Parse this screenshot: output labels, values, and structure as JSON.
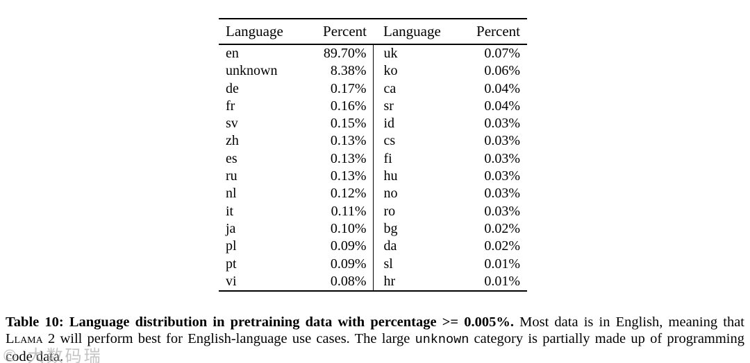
{
  "page": {
    "background": "#ffffff",
    "text_color": "#000000"
  },
  "table": {
    "headers": [
      "Language",
      "Percent",
      "Language",
      "Percent"
    ],
    "rows": [
      {
        "lang1": "en",
        "pct1": "89.70%",
        "lang2": "uk",
        "pct2": "0.07%"
      },
      {
        "lang1": "unknown",
        "pct1": "8.38%",
        "lang2": "ko",
        "pct2": "0.06%"
      },
      {
        "lang1": "de",
        "pct1": "0.17%",
        "lang2": "ca",
        "pct2": "0.04%"
      },
      {
        "lang1": "fr",
        "pct1": "0.16%",
        "lang2": "sr",
        "pct2": "0.04%"
      },
      {
        "lang1": "sv",
        "pct1": "0.15%",
        "lang2": "id",
        "pct2": "0.03%"
      },
      {
        "lang1": "zh",
        "pct1": "0.13%",
        "lang2": "cs",
        "pct2": "0.03%"
      },
      {
        "lang1": "es",
        "pct1": "0.13%",
        "lang2": "fi",
        "pct2": "0.03%"
      },
      {
        "lang1": "ru",
        "pct1": "0.13%",
        "lang2": "hu",
        "pct2": "0.03%"
      },
      {
        "lang1": "nl",
        "pct1": "0.12%",
        "lang2": "no",
        "pct2": "0.03%"
      },
      {
        "lang1": "it",
        "pct1": "0.11%",
        "lang2": "ro",
        "pct2": "0.03%"
      },
      {
        "lang1": "ja",
        "pct1": "0.10%",
        "lang2": "bg",
        "pct2": "0.02%"
      },
      {
        "lang1": "pl",
        "pct1": "0.09%",
        "lang2": "da",
        "pct2": "0.02%"
      },
      {
        "lang1": "pt",
        "pct1": "0.09%",
        "lang2": "sl",
        "pct2": "0.01%"
      },
      {
        "lang1": "vi",
        "pct1": "0.08%",
        "lang2": "hr",
        "pct2": "0.01%"
      }
    ]
  },
  "caption": {
    "bold_part": "Table 10: Language distribution in pretraining data with percentage >= 0.005%.",
    "part2": " Most data is in English, meaning that ",
    "llama_label": "Llama 2",
    "part3": " will perform best for English-language use cases. The large ",
    "unknown_label": "unknown",
    "part4": " category is partially made up of programming code data."
  },
  "watermark": "© 大数码瑞"
}
